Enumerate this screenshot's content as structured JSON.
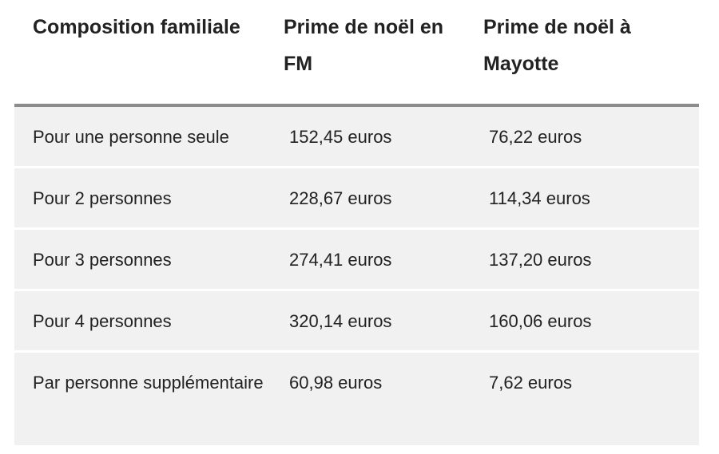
{
  "table": {
    "headers": [
      "Composition familiale",
      "Prime de noël en FM",
      "Prime de noël à Mayotte"
    ],
    "rows": [
      [
        "Pour une personne seule",
        "152,45 euros",
        "76,22 euros"
      ],
      [
        "Pour 2 personnes",
        "228,67 euros",
        "114,34 euros"
      ],
      [
        "Pour 3 personnes",
        "274,41 euros",
        "137,20 euros"
      ],
      [
        "Pour 4 personnes",
        "320,14 euros",
        "160,06 euros"
      ],
      [
        "Par personne supplémentaire",
        "60,98 euros",
        "7,62 euros"
      ]
    ]
  }
}
